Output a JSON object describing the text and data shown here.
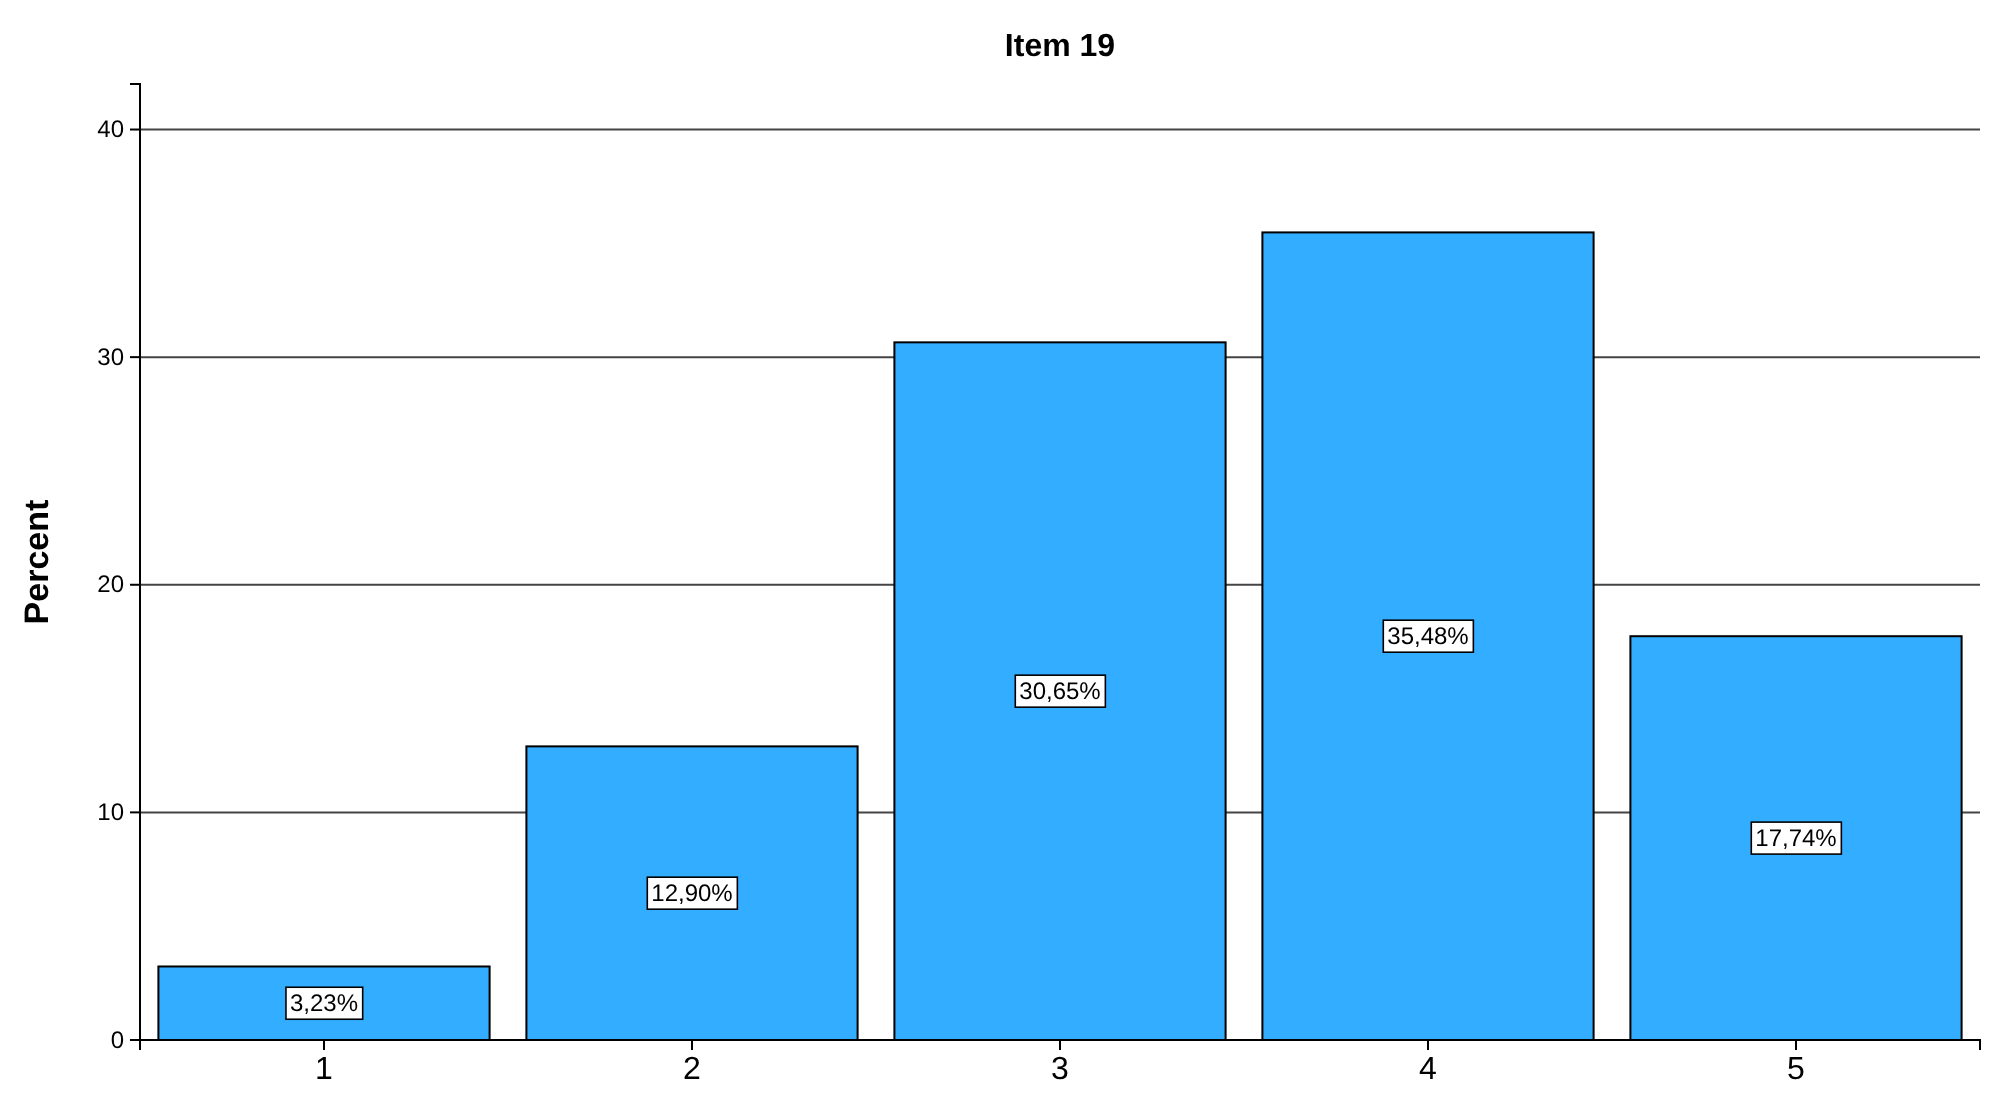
{
  "chart_data": {
    "type": "bar",
    "title": "Item 19",
    "ylabel": "Percent",
    "categories": [
      "1",
      "2",
      "3",
      "4",
      "5"
    ],
    "values": [
      3.23,
      12.9,
      30.65,
      35.48,
      17.74
    ],
    "value_labels": [
      "3,23%",
      "12,90%",
      "30,65%",
      "35,48%",
      "17,74%"
    ],
    "color": "#33adff",
    "ylim": [
      0,
      42
    ],
    "yticks": [
      0,
      10,
      20,
      30,
      40
    ],
    "grid": "y"
  }
}
